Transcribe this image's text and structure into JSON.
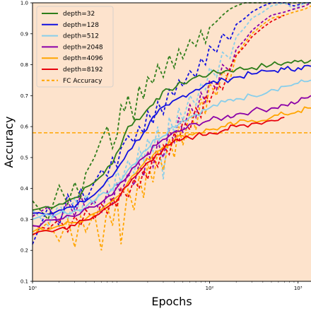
{
  "chart_data": {
    "type": "line",
    "title": "",
    "xlabel": "Epochs",
    "ylabel": "Accuracy",
    "xscale": "log",
    "xlim": [
      1,
      1400
    ],
    "ylim": [
      0.1,
      1.0
    ],
    "x_ticks": [
      {
        "value": 1,
        "label": "10⁰"
      },
      {
        "value": 100,
        "label": "10²"
      },
      {
        "value": 1000,
        "label": "10³"
      }
    ],
    "y_ticks": [
      "0.1",
      "0.2",
      "0.3",
      "0.4",
      "0.5",
      "0.6",
      "0.7",
      "0.8",
      "0.9",
      "1.0"
    ],
    "grid": false,
    "background": "#fde3cc",
    "legend": {
      "position": "top-left"
    },
    "fc_accuracy": {
      "name": "FC Accuracy",
      "value": 0.58,
      "color": "#ffa500"
    },
    "series": [
      {
        "name": "depth=32",
        "color": "#2e7d1a",
        "x": [
          1,
          2,
          3,
          5,
          8,
          12,
          18,
          25,
          35,
          50,
          70,
          100,
          150,
          200,
          300,
          500,
          700,
          1000,
          1400
        ],
        "y": [
          0.33,
          0.35,
          0.37,
          0.42,
          0.48,
          0.6,
          0.64,
          0.69,
          0.72,
          0.74,
          0.76,
          0.77,
          0.78,
          0.785,
          0.79,
          0.8,
          0.805,
          0.81,
          0.815
        ]
      },
      {
        "name": "depth=128",
        "color": "#1010e0",
        "x": [
          1,
          2,
          3,
          5,
          8,
          12,
          18,
          25,
          35,
          50,
          70,
          100,
          150,
          200,
          300,
          500,
          700,
          1000,
          1400
        ],
        "y": [
          0.32,
          0.33,
          0.34,
          0.38,
          0.44,
          0.52,
          0.58,
          0.64,
          0.67,
          0.7,
          0.72,
          0.74,
          0.75,
          0.76,
          0.77,
          0.78,
          0.785,
          0.79,
          0.795
        ]
      },
      {
        "name": "depth=512",
        "color": "#87ceeb",
        "x": [
          1,
          2,
          3,
          5,
          8,
          12,
          18,
          25,
          35,
          50,
          70,
          100,
          150,
          200,
          300,
          500,
          700,
          1000,
          1400
        ],
        "y": [
          0.3,
          0.32,
          0.33,
          0.36,
          0.4,
          0.46,
          0.52,
          0.56,
          0.59,
          0.62,
          0.64,
          0.66,
          0.68,
          0.69,
          0.7,
          0.72,
          0.73,
          0.74,
          0.75
        ]
      },
      {
        "name": "depth=2048",
        "color": "#8b00a8",
        "x": [
          1,
          2,
          3,
          5,
          8,
          12,
          18,
          25,
          35,
          50,
          70,
          100,
          150,
          200,
          300,
          500,
          700,
          1000,
          1400
        ],
        "y": [
          0.28,
          0.3,
          0.31,
          0.34,
          0.38,
          0.44,
          0.5,
          0.54,
          0.57,
          0.59,
          0.61,
          0.62,
          0.63,
          0.64,
          0.65,
          0.66,
          0.67,
          0.68,
          0.7
        ]
      },
      {
        "name": "depth=4096",
        "color": "#ffa500",
        "x": [
          1,
          2,
          3,
          5,
          8,
          12,
          18,
          25,
          35,
          50,
          70,
          100,
          150,
          200,
          300,
          500,
          700,
          1000,
          1400
        ],
        "y": [
          0.26,
          0.28,
          0.29,
          0.32,
          0.36,
          0.42,
          0.48,
          0.52,
          0.55,
          0.57,
          0.58,
          0.59,
          0.6,
          0.61,
          0.62,
          0.63,
          0.64,
          0.65,
          0.66
        ]
      },
      {
        "name": "depth=8192",
        "color": "#e8000b",
        "x": [
          1,
          2,
          3,
          5,
          8,
          12,
          18,
          25,
          35,
          50,
          70,
          100,
          150,
          200,
          300,
          500,
          700
        ],
        "y": [
          0.25,
          0.27,
          0.28,
          0.31,
          0.35,
          0.41,
          0.47,
          0.51,
          0.54,
          0.56,
          0.57,
          0.58,
          0.59,
          0.6,
          0.61,
          0.62,
          0.63
        ]
      }
    ],
    "val_series": [
      {
        "color": "#2e7d1a",
        "x": [
          1,
          1.5,
          2,
          2.5,
          3,
          3.5,
          4,
          5,
          6,
          7,
          8,
          9,
          10,
          11,
          12,
          14,
          16,
          18,
          20,
          23,
          26,
          30,
          35,
          40,
          45,
          50,
          60,
          70,
          80,
          90,
          100,
          120,
          140,
          170,
          200,
          250,
          300,
          400,
          500,
          700,
          900,
          1200,
          1400
        ],
        "y": [
          0.36,
          0.3,
          0.41,
          0.35,
          0.42,
          0.37,
          0.45,
          0.5,
          0.56,
          0.6,
          0.53,
          0.57,
          0.67,
          0.65,
          0.7,
          0.62,
          0.73,
          0.69,
          0.76,
          0.74,
          0.8,
          0.76,
          0.83,
          0.79,
          0.85,
          0.82,
          0.88,
          0.86,
          0.91,
          0.87,
          0.92,
          0.94,
          0.96,
          0.98,
          0.99,
          1.0,
          1.0,
          1.0,
          1.0,
          1.0,
          1.0,
          1.0,
          1.0
        ]
      },
      {
        "color": "#1010e0",
        "x": [
          1,
          1.5,
          2,
          2.5,
          3,
          3.5,
          4,
          5,
          6,
          7,
          8,
          9,
          10,
          12,
          14,
          16,
          18,
          20,
          23,
          26,
          30,
          35,
          40,
          45,
          50,
          60,
          70,
          80,
          90,
          100,
          120,
          140,
          170,
          200,
          250,
          300,
          400,
          500,
          700,
          900,
          1200,
          1400
        ],
        "y": [
          0.22,
          0.34,
          0.28,
          0.38,
          0.33,
          0.4,
          0.36,
          0.42,
          0.46,
          0.44,
          0.5,
          0.47,
          0.53,
          0.57,
          0.55,
          0.6,
          0.58,
          0.65,
          0.61,
          0.68,
          0.64,
          0.72,
          0.7,
          0.75,
          0.73,
          0.78,
          0.76,
          0.82,
          0.8,
          0.86,
          0.84,
          0.9,
          0.88,
          0.93,
          0.95,
          0.97,
          0.99,
          1.0,
          1.0,
          0.99,
          1.0,
          1.0
        ]
      },
      {
        "color": "#87ceeb",
        "x": [
          1,
          1.5,
          2,
          2.5,
          3,
          3.5,
          4,
          5,
          6,
          7,
          8,
          9,
          10,
          12,
          14,
          16,
          18,
          20,
          23,
          26,
          30,
          35,
          40,
          45,
          50,
          60,
          70,
          80,
          90,
          100,
          120,
          140,
          170,
          200,
          250,
          300,
          400,
          500,
          700,
          900,
          1200,
          1400
        ],
        "y": [
          0.33,
          0.28,
          0.35,
          0.3,
          0.37,
          0.32,
          0.38,
          0.35,
          0.4,
          0.43,
          0.38,
          0.46,
          0.42,
          0.49,
          0.45,
          0.53,
          0.49,
          0.56,
          0.52,
          0.6,
          0.43,
          0.63,
          0.58,
          0.66,
          0.62,
          0.7,
          0.67,
          0.74,
          0.72,
          0.79,
          0.76,
          0.84,
          0.82,
          0.89,
          0.92,
          0.95,
          0.97,
          0.99,
          1.0,
          0.98,
          1.0,
          1.0
        ]
      },
      {
        "color": "#8b00a8",
        "x": [
          1,
          1.5,
          2,
          2.5,
          3,
          3.5,
          4,
          5,
          6,
          7,
          8,
          9,
          10,
          12,
          14,
          16,
          18,
          20,
          23,
          26,
          30,
          35,
          40,
          45,
          50,
          60,
          70,
          80,
          90,
          100,
          120,
          140,
          170,
          200,
          250,
          300,
          400,
          500,
          700,
          900,
          1200,
          1400
        ],
        "y": [
          0.31,
          0.34,
          0.29,
          0.36,
          0.31,
          0.38,
          0.33,
          0.36,
          0.32,
          0.39,
          0.35,
          0.42,
          0.38,
          0.45,
          0.41,
          0.48,
          0.44,
          0.52,
          0.47,
          0.55,
          0.5,
          0.59,
          0.55,
          0.63,
          0.58,
          0.67,
          0.63,
          0.71,
          0.68,
          0.75,
          0.72,
          0.8,
          0.78,
          0.85,
          0.88,
          0.91,
          0.94,
          0.96,
          0.97,
          0.98,
          0.99,
          1.0
        ]
      },
      {
        "color": "#ffa500",
        "x": [
          1,
          1.5,
          2,
          2.5,
          3,
          3.5,
          4,
          5,
          6,
          7,
          8,
          9,
          10,
          12,
          14,
          16,
          18,
          20,
          23,
          26,
          30,
          35,
          40,
          45,
          50,
          60,
          70,
          80,
          90,
          100,
          120,
          140,
          170,
          200,
          250,
          300,
          400,
          500,
          700,
          900,
          1200,
          1400
        ],
        "y": [
          0.25,
          0.29,
          0.23,
          0.3,
          0.21,
          0.31,
          0.26,
          0.32,
          0.2,
          0.34,
          0.28,
          0.37,
          0.22,
          0.4,
          0.33,
          0.44,
          0.37,
          0.48,
          0.42,
          0.52,
          0.46,
          0.56,
          0.5,
          0.6,
          0.54,
          0.65,
          0.59,
          0.69,
          0.64,
          0.74,
          0.7,
          0.78,
          0.75,
          0.83,
          0.87,
          0.9,
          0.93,
          0.95,
          0.96,
          0.97,
          0.98,
          0.99
        ]
      },
      {
        "color": "#e8000b",
        "x": [
          1,
          1.5,
          2,
          2.5,
          3,
          3.5,
          4,
          5,
          6,
          7,
          8,
          9,
          10,
          12,
          14,
          16,
          18,
          20,
          23,
          26,
          30,
          35,
          40,
          45,
          50,
          60,
          70,
          80,
          90,
          100,
          120,
          140,
          170,
          200,
          250,
          300,
          400,
          500,
          700
        ],
        "y": [
          0.28,
          0.27,
          0.3,
          0.26,
          0.31,
          0.28,
          0.33,
          0.3,
          0.35,
          0.32,
          0.37,
          0.34,
          0.4,
          0.37,
          0.43,
          0.4,
          0.46,
          0.43,
          0.5,
          0.47,
          0.54,
          0.51,
          0.58,
          0.55,
          0.62,
          0.59,
          0.66,
          0.63,
          0.7,
          0.68,
          0.74,
          0.72,
          0.79,
          0.83,
          0.86,
          0.89,
          0.92,
          0.94,
          0.96
        ]
      }
    ]
  }
}
